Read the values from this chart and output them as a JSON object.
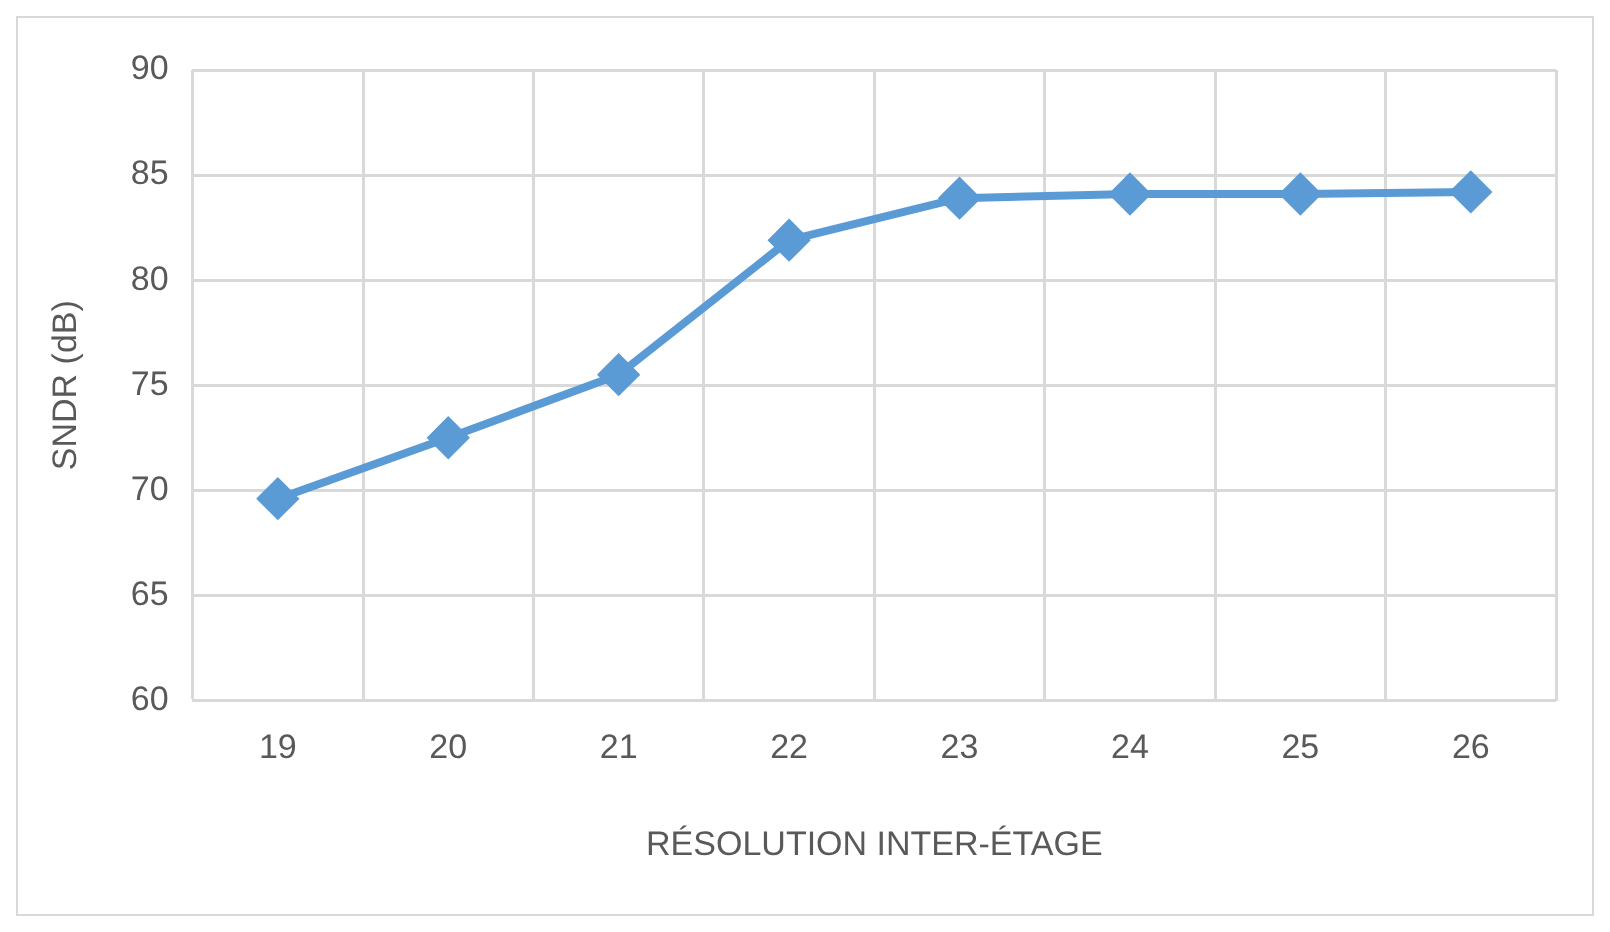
{
  "chart_data": {
    "type": "line",
    "xlabel": "RÉSOLUTION INTER-ÉTAGE",
    "ylabel": "SNDR (dB)",
    "categories": [
      "19",
      "20",
      "21",
      "22",
      "23",
      "24",
      "25",
      "26"
    ],
    "series": [
      {
        "color": "#5b9bd5",
        "values": [
          69.6,
          72.5,
          75.5,
          81.9,
          83.9,
          84.1,
          84.1,
          84.2
        ]
      }
    ],
    "ylim": [
      60,
      90
    ],
    "yticks": [
      60,
      65,
      70,
      75,
      80,
      85,
      90
    ],
    "grid": true,
    "marker": "diamond",
    "line_style": "solid",
    "legend": false
  }
}
